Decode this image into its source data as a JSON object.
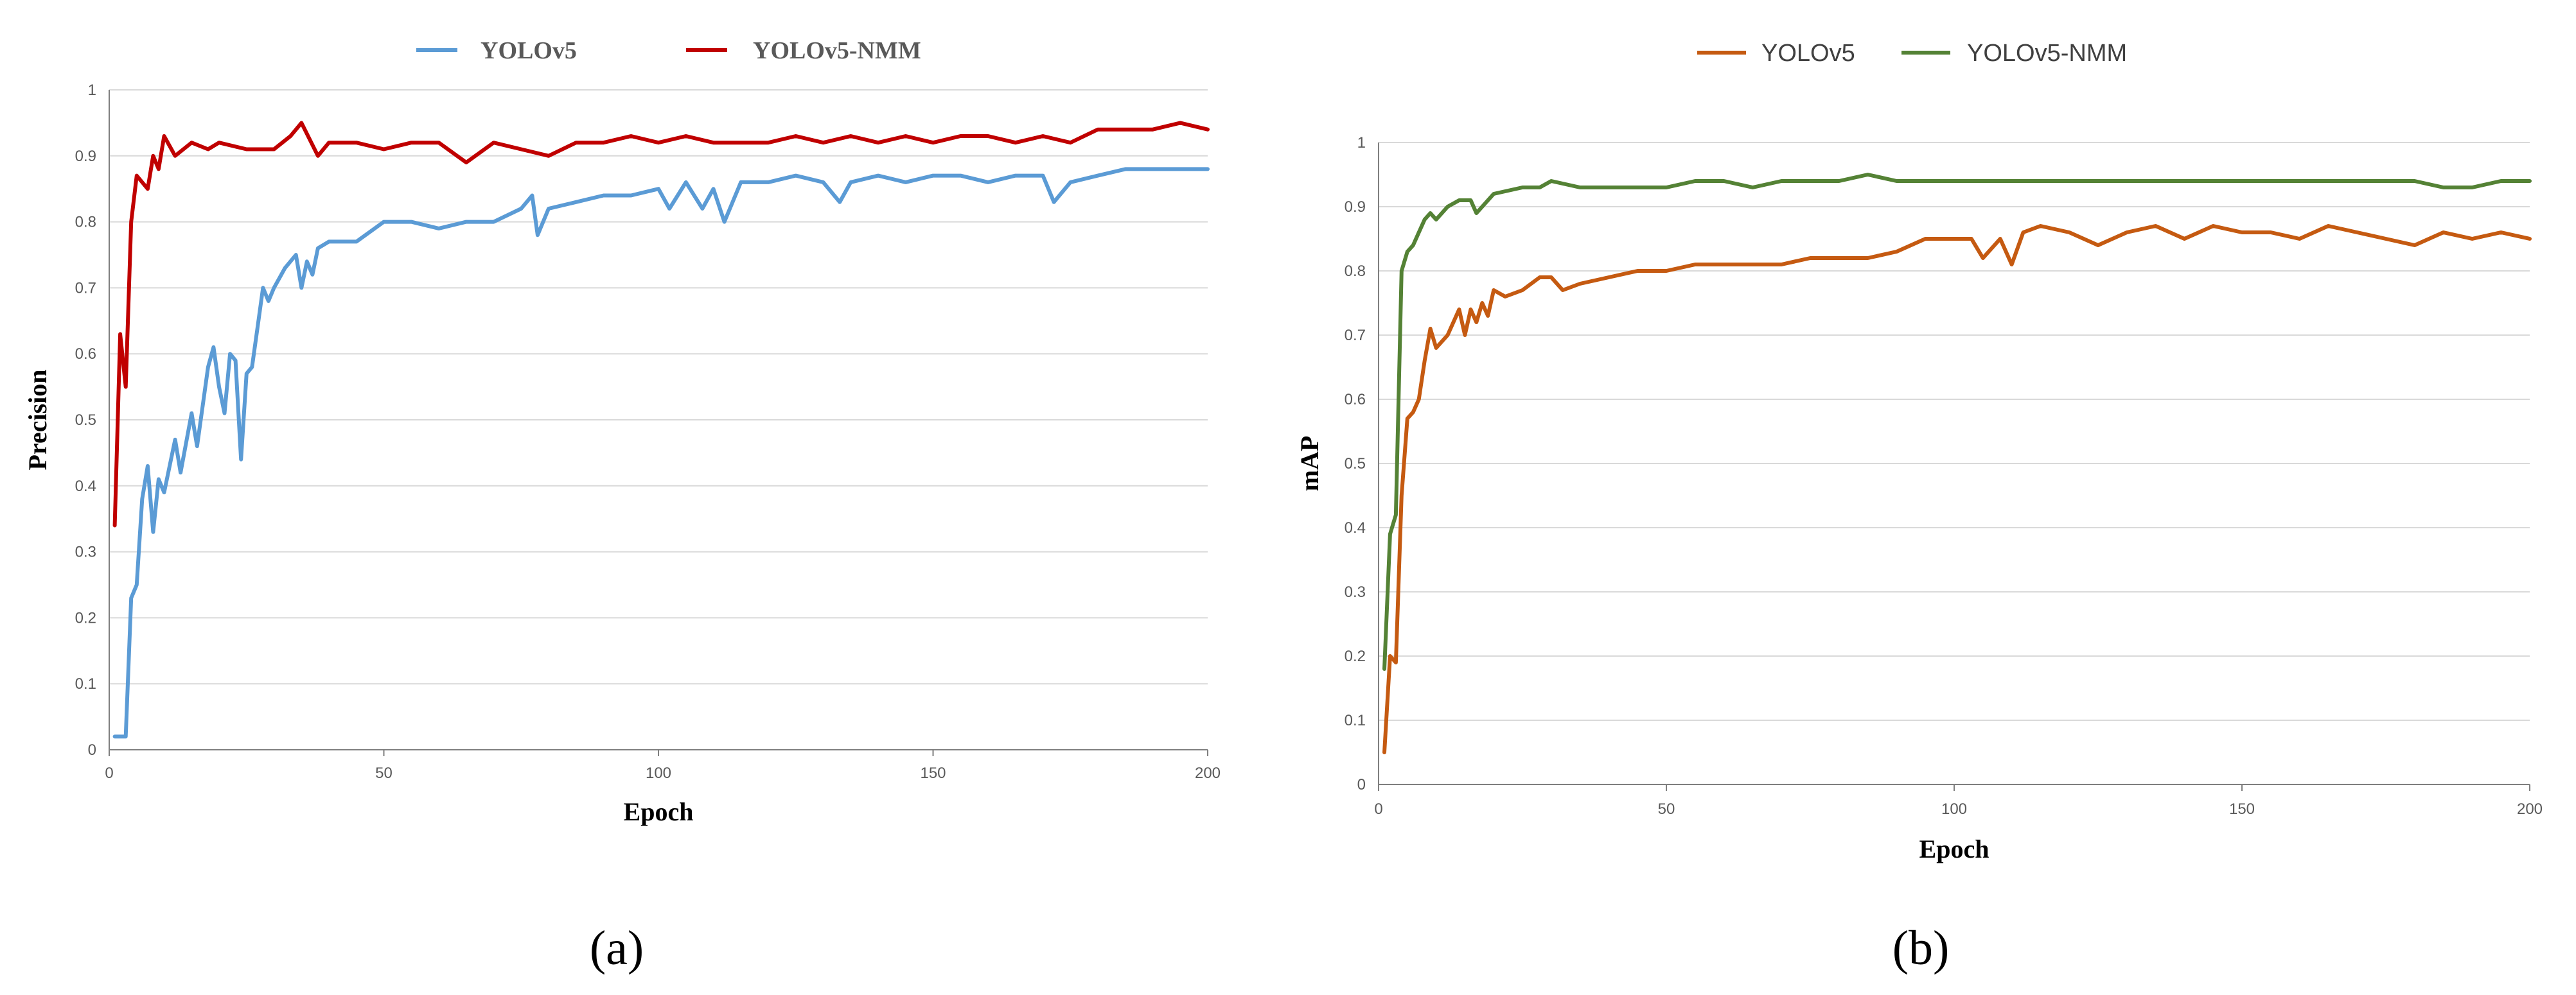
{
  "chart_data": [
    {
      "panel": "(a)",
      "type": "line",
      "xlabel": "Epoch",
      "ylabel": "Precision",
      "xlim": [
        0,
        200
      ],
      "ylim": [
        0,
        1
      ],
      "xticks": [
        0,
        50,
        100,
        150,
        200
      ],
      "yticks": [
        0,
        0.1,
        0.2,
        0.3,
        0.4,
        0.5,
        0.6,
        0.7,
        0.8,
        0.9,
        1
      ],
      "grid": "horizontal",
      "legend": "top-center",
      "series": [
        {
          "name": "YOLOv5",
          "color": "#5B9BD5",
          "x": [
            1,
            3,
            4,
            5,
            6,
            7,
            8,
            9,
            10,
            12,
            13,
            15,
            16,
            18,
            19,
            20,
            21,
            22,
            23,
            24,
            25,
            26,
            27,
            28,
            29,
            30,
            32,
            34,
            35,
            36,
            37,
            38,
            40,
            45,
            50,
            55,
            60,
            65,
            70,
            75,
            77,
            78,
            80,
            85,
            90,
            95,
            100,
            102,
            105,
            108,
            110,
            112,
            115,
            120,
            125,
            130,
            133,
            135,
            140,
            145,
            150,
            155,
            160,
            165,
            170,
            172,
            175,
            180,
            185,
            190,
            195,
            200
          ],
          "y": [
            0.02,
            0.02,
            0.23,
            0.25,
            0.38,
            0.43,
            0.33,
            0.41,
            0.39,
            0.47,
            0.42,
            0.51,
            0.46,
            0.58,
            0.61,
            0.55,
            0.51,
            0.6,
            0.59,
            0.44,
            0.57,
            0.58,
            0.64,
            0.7,
            0.68,
            0.7,
            0.73,
            0.75,
            0.7,
            0.74,
            0.72,
            0.76,
            0.77,
            0.77,
            0.8,
            0.8,
            0.79,
            0.8,
            0.8,
            0.82,
            0.84,
            0.78,
            0.82,
            0.83,
            0.84,
            0.84,
            0.85,
            0.82,
            0.86,
            0.82,
            0.85,
            0.8,
            0.86,
            0.86,
            0.87,
            0.86,
            0.83,
            0.86,
            0.87,
            0.86,
            0.87,
            0.87,
            0.86,
            0.87,
            0.87,
            0.83,
            0.86,
            0.87,
            0.88,
            0.88,
            0.88,
            0.88
          ]
        },
        {
          "name": "YOLOv5-NMM",
          "color": "#C00000",
          "x": [
            1,
            2,
            3,
            4,
            5,
            6,
            7,
            8,
            9,
            10,
            12,
            15,
            18,
            20,
            25,
            30,
            33,
            35,
            38,
            40,
            45,
            50,
            55,
            60,
            65,
            70,
            75,
            80,
            85,
            90,
            95,
            100,
            105,
            110,
            115,
            120,
            125,
            130,
            135,
            140,
            145,
            150,
            155,
            160,
            165,
            170,
            175,
            180,
            185,
            190,
            195,
            200
          ],
          "y": [
            0.34,
            0.63,
            0.55,
            0.8,
            0.87,
            0.86,
            0.85,
            0.9,
            0.88,
            0.93,
            0.9,
            0.92,
            0.91,
            0.92,
            0.91,
            0.91,
            0.93,
            0.95,
            0.9,
            0.92,
            0.92,
            0.91,
            0.92,
            0.92,
            0.89,
            0.92,
            0.91,
            0.9,
            0.92,
            0.92,
            0.93,
            0.92,
            0.93,
            0.92,
            0.92,
            0.92,
            0.93,
            0.92,
            0.93,
            0.92,
            0.93,
            0.92,
            0.93,
            0.93,
            0.92,
            0.93,
            0.92,
            0.94,
            0.94,
            0.94,
            0.95,
            0.94
          ]
        }
      ]
    },
    {
      "panel": "(b)",
      "type": "line",
      "xlabel": "Epoch",
      "ylabel": "mAP",
      "xlim": [
        0,
        200
      ],
      "ylim": [
        0,
        1
      ],
      "xticks": [
        0,
        50,
        100,
        150,
        200
      ],
      "yticks": [
        0,
        0.1,
        0.2,
        0.3,
        0.4,
        0.5,
        0.6,
        0.7,
        0.8,
        0.9,
        1
      ],
      "grid": "horizontal",
      "legend": "top-center",
      "series": [
        {
          "name": "YOLOv5",
          "color": "#C55A11",
          "x": [
            1,
            2,
            3,
            4,
            5,
            6,
            7,
            8,
            9,
            10,
            12,
            14,
            15,
            16,
            17,
            18,
            19,
            20,
            22,
            25,
            28,
            30,
            32,
            35,
            40,
            45,
            50,
            55,
            60,
            65,
            70,
            75,
            80,
            85,
            90,
            95,
            100,
            103,
            105,
            108,
            110,
            112,
            115,
            120,
            125,
            130,
            135,
            140,
            145,
            150,
            155,
            160,
            165,
            170,
            175,
            180,
            185,
            190,
            195,
            200
          ],
          "y": [
            0.05,
            0.2,
            0.19,
            0.45,
            0.57,
            0.58,
            0.6,
            0.66,
            0.71,
            0.68,
            0.7,
            0.74,
            0.7,
            0.74,
            0.72,
            0.75,
            0.73,
            0.77,
            0.76,
            0.77,
            0.79,
            0.79,
            0.77,
            0.78,
            0.79,
            0.8,
            0.8,
            0.81,
            0.81,
            0.81,
            0.81,
            0.82,
            0.82,
            0.82,
            0.83,
            0.85,
            0.85,
            0.85,
            0.82,
            0.85,
            0.81,
            0.86,
            0.87,
            0.86,
            0.84,
            0.86,
            0.87,
            0.85,
            0.87,
            0.86,
            0.86,
            0.85,
            0.87,
            0.86,
            0.85,
            0.84,
            0.86,
            0.85,
            0.86,
            0.85
          ]
        },
        {
          "name": "YOLOv5-NMM",
          "color": "#548235",
          "x": [
            1,
            2,
            3,
            4,
            5,
            6,
            7,
            8,
            9,
            10,
            12,
            14,
            15,
            16,
            17,
            18,
            20,
            25,
            28,
            30,
            35,
            40,
            45,
            50,
            55,
            60,
            65,
            70,
            75,
            80,
            85,
            90,
            95,
            100,
            110,
            120,
            130,
            140,
            150,
            160,
            170,
            180,
            185,
            190,
            195,
            200
          ],
          "y": [
            0.18,
            0.39,
            0.42,
            0.8,
            0.83,
            0.84,
            0.86,
            0.88,
            0.89,
            0.88,
            0.9,
            0.91,
            0.91,
            0.91,
            0.89,
            0.9,
            0.92,
            0.93,
            0.93,
            0.94,
            0.93,
            0.93,
            0.93,
            0.93,
            0.94,
            0.94,
            0.93,
            0.94,
            0.94,
            0.94,
            0.95,
            0.94,
            0.94,
            0.94,
            0.94,
            0.94,
            0.94,
            0.94,
            0.94,
            0.94,
            0.94,
            0.94,
            0.93,
            0.93,
            0.94,
            0.94
          ]
        }
      ]
    }
  ],
  "panel_labels": [
    "(a)",
    "(b)"
  ]
}
